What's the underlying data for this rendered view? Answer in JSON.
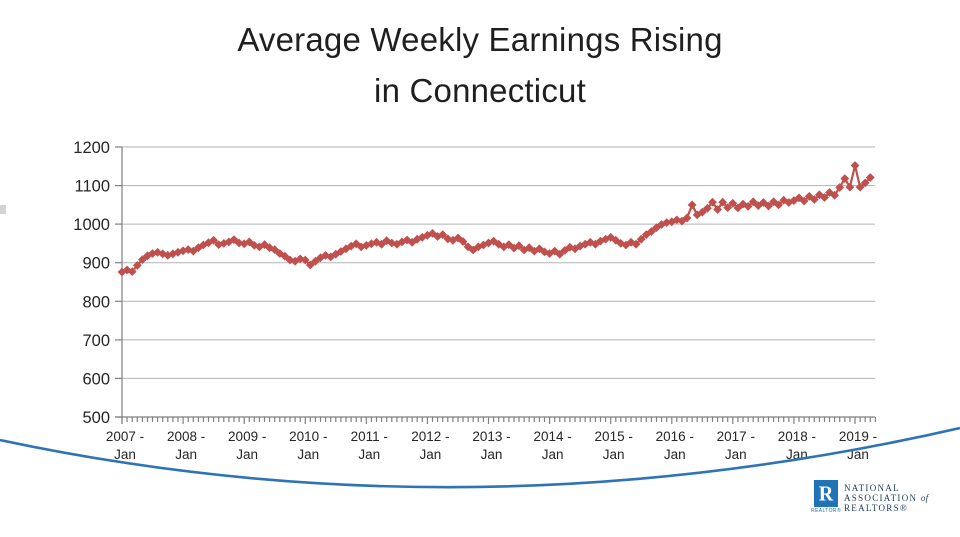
{
  "slide": {
    "title_line1": "Average Weekly Earnings Rising",
    "title_line2": "in Connecticut"
  },
  "chart_data": {
    "type": "line",
    "title": "Average Weekly Earnings Rising in Connecticut",
    "x_unit": "month",
    "x_start": "2007-01",
    "x_end": "2019-04",
    "ylim": [
      500,
      1200
    ],
    "yticks": [
      500,
      600,
      700,
      800,
      900,
      1000,
      1100,
      1200
    ],
    "grid": true,
    "legend": false,
    "marker": "diamond",
    "xticks": [
      {
        "line1": "2007 -",
        "line2": "Jan"
      },
      {
        "line1": "2008 -",
        "line2": "Jan"
      },
      {
        "line1": "2009 -",
        "line2": "Jan"
      },
      {
        "line1": "2010 -",
        "line2": "Jan"
      },
      {
        "line1": "2011 -",
        "line2": "Jan"
      },
      {
        "line1": "2012 -",
        "line2": "Jan"
      },
      {
        "line1": "2013 -",
        "line2": "Jan"
      },
      {
        "line1": "2014 -",
        "line2": "Jan"
      },
      {
        "line1": "2015 -",
        "line2": "Jan"
      },
      {
        "line1": "2016 -",
        "line2": "Jan"
      },
      {
        "line1": "2017 -",
        "line2": "Jan"
      },
      {
        "line1": "2018 -",
        "line2": "Jan"
      },
      {
        "line1": "2019 -",
        "line2": "Jan"
      }
    ],
    "values": [
      876,
      881,
      877,
      893,
      908,
      918,
      924,
      927,
      923,
      919,
      923,
      927,
      931,
      934,
      930,
      939,
      946,
      952,
      958,
      947,
      950,
      954,
      960,
      951,
      949,
      954,
      945,
      941,
      947,
      939,
      934,
      924,
      917,
      907,
      904,
      910,
      907,
      894,
      904,
      913,
      919,
      915,
      922,
      929,
      936,
      943,
      949,
      941,
      945,
      949,
      953,
      948,
      957,
      951,
      948,
      954,
      959,
      953,
      961,
      966,
      971,
      976,
      968,
      973,
      962,
      958,
      964,
      955,
      941,
      933,
      941,
      946,
      951,
      956,
      948,
      941,
      947,
      938,
      944,
      933,
      939,
      930,
      936,
      928,
      924,
      930,
      922,
      932,
      940,
      936,
      943,
      948,
      953,
      948,
      956,
      961,
      966,
      958,
      950,
      946,
      953,
      948,
      961,
      973,
      981,
      991,
      999,
      1004,
      1006,
      1011,
      1008,
      1016,
      1050,
      1024,
      1031,
      1041,
      1057,
      1038,
      1057,
      1043,
      1054,
      1042,
      1052,
      1046,
      1058,
      1048,
      1056,
      1047,
      1058,
      1050,
      1062,
      1056,
      1061,
      1068,
      1060,
      1072,
      1064,
      1076,
      1069,
      1082,
      1075,
      1095,
      1118,
      1096,
      1152,
      1096,
      1107,
      1121
    ]
  },
  "logo": {
    "line1": "NATIONAL",
    "line2": "ASSOCIATION",
    "line2_of": "of",
    "line3": "REALTORS®",
    "badge_letter": "R",
    "badge_caption": "REALTOR®"
  },
  "colors": {
    "series_red": "#C0504D",
    "swoosh_blue": "#2E74B5",
    "logo_blue": "#2173B8",
    "logo_navy": "#1B3A5C",
    "grid_gray": "#B3B3B3",
    "axis_gray": "#7F7F7F",
    "text_dark": "#262626"
  }
}
